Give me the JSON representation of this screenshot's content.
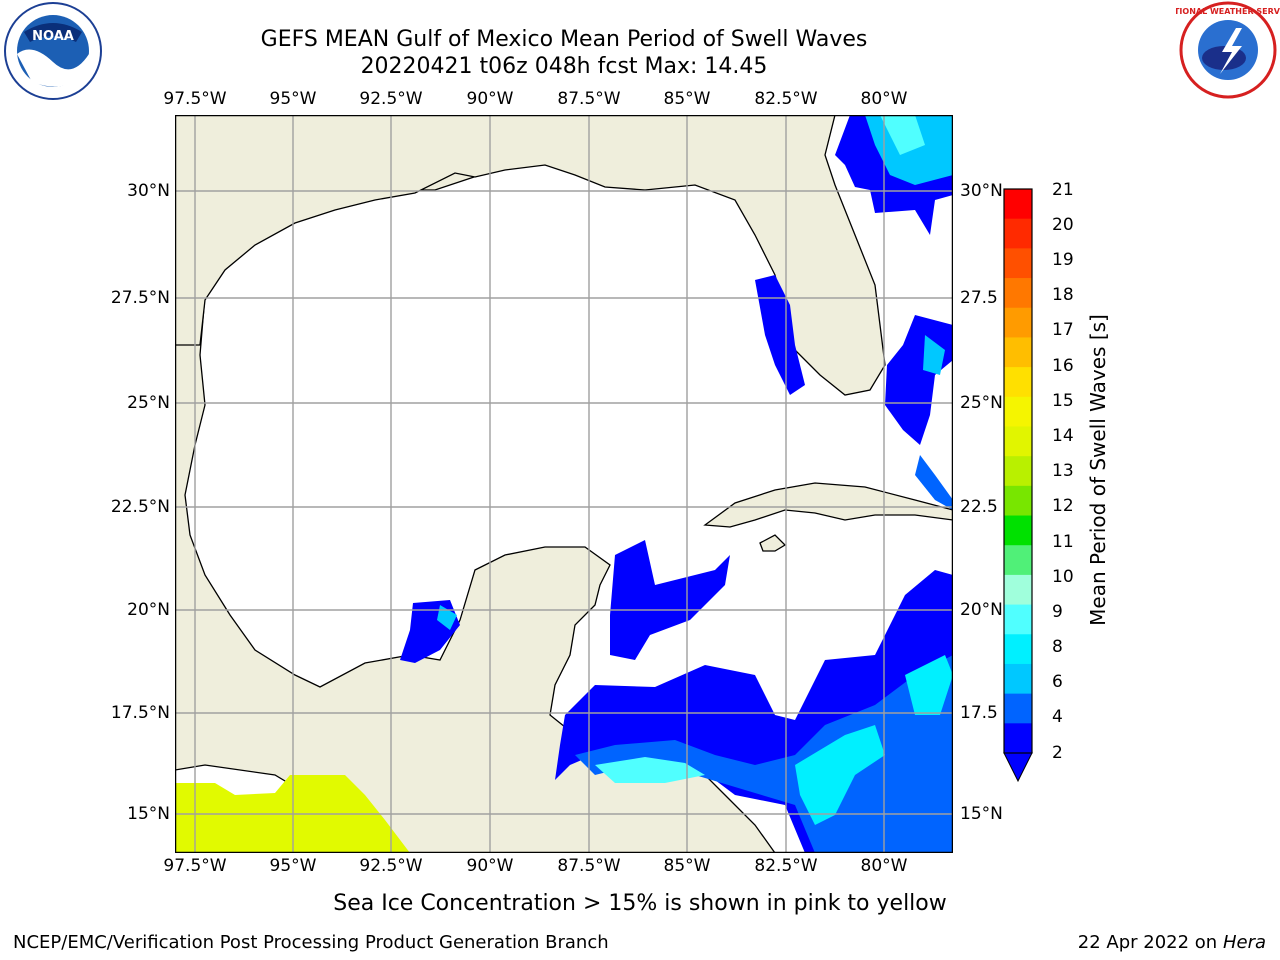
{
  "title": {
    "line1": "GEFS MEAN Gulf of Mexico Mean Period of Swell Waves",
    "line2": "20220421 t06z 048h fcst   Max: 14.45"
  },
  "map": {
    "lon_labels": [
      "97.5°W",
      "95°W",
      "92.5°W",
      "90°W",
      "87.5°W",
      "85°W",
      "82.5°W",
      "80°W"
    ],
    "lat_labels_left": [
      "30°N",
      "27.5°N",
      "25°N",
      "22.5°N",
      "20°N",
      "17.5°N",
      "15°N"
    ],
    "lat_labels_right": [
      "30°N",
      "27.5",
      "25°N",
      "22.5",
      "20°N",
      "17.5",
      "15°N"
    ],
    "lon_range": [
      -98,
      -78
    ],
    "lat_range": [
      14,
      32
    ],
    "land_color": "#efeedc",
    "gridlines": true
  },
  "colorbar": {
    "label": "Mean Period of Swell Waves [s]",
    "ticks": [
      "21",
      "20",
      "19",
      "18",
      "17",
      "16",
      "15",
      "14",
      "13",
      "12",
      "11",
      "10",
      "9",
      "8",
      "6",
      "4",
      "2"
    ],
    "colors": [
      "#ff0000",
      "#ff2a00",
      "#ff5000",
      "#ff7800",
      "#ff9b00",
      "#ffbe00",
      "#ffe000",
      "#f5f500",
      "#e1f500",
      "#b9f000",
      "#78e600",
      "#00e100",
      "#50f078",
      "#a0ffdc",
      "#50ffff",
      "#00f0ff",
      "#00c8ff",
      "#0064ff",
      "#0000ff"
    ],
    "extend_min_color": "#0000ff"
  },
  "caption": "Sea Ice Concentration > 15% is shown in pink to yellow",
  "footer": {
    "left": "NCEP/EMC/Verification Post Processing Product Generation Branch",
    "date": "22 Apr 2022 on ",
    "host": "Hera"
  },
  "logos": {
    "noaa_text": "NOAA",
    "nws_text": "NATIONAL WEATHER SERVICE"
  }
}
